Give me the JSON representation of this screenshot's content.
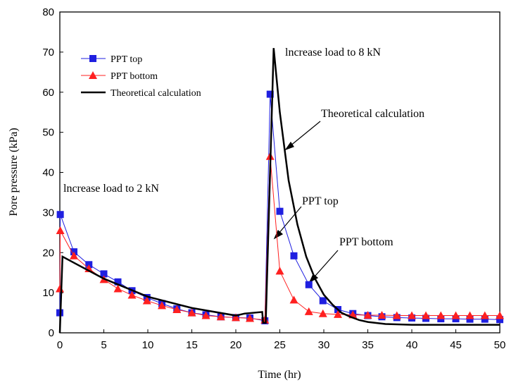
{
  "chart_data": {
    "type": "line",
    "xlabel": "Time (hr)",
    "ylabel": "Pore pressure (kPa)",
    "xlim": [
      0,
      50
    ],
    "ylim": [
      0,
      80
    ],
    "xticks": [
      0,
      5,
      10,
      15,
      20,
      25,
      30,
      35,
      40,
      45,
      50
    ],
    "yticks": [
      0,
      10,
      20,
      30,
      40,
      50,
      60,
      70,
      80
    ],
    "series": [
      {
        "name": "PPT top",
        "color": "#1f1fe0",
        "marker": "square",
        "x": [
          0,
          0.05,
          1.6,
          3.3,
          5,
          6.6,
          8.2,
          9.9,
          11.6,
          13.3,
          15,
          16.6,
          18.3,
          20,
          21.6,
          23.3,
          23.9,
          25,
          26.6,
          28.3,
          29.9,
          31.6,
          33.3,
          35,
          36.6,
          38.3,
          40,
          41.6,
          43.3,
          45,
          46.6,
          48.3,
          50
        ],
        "values": [
          5,
          29.5,
          20.2,
          17,
          14.7,
          12.7,
          10.5,
          8.8,
          7.3,
          6,
          5,
          4.5,
          4,
          3.8,
          3.7,
          3,
          59.5,
          30.3,
          19.2,
          12,
          8,
          5.8,
          4.8,
          4.3,
          4,
          3.8,
          3.7,
          3.6,
          3.5,
          3.5,
          3.4,
          3.4,
          3.3
        ]
      },
      {
        "name": "PPT bottom",
        "color": "#ff2020",
        "marker": "triangle",
        "x": [
          0,
          0.05,
          1.6,
          3.3,
          5,
          6.6,
          8.2,
          9.9,
          11.6,
          13.3,
          15,
          16.6,
          18.3,
          20,
          21.6,
          23.3,
          23.9,
          25,
          26.6,
          28.3,
          29.9,
          31.6,
          33.3,
          35,
          36.6,
          38.3,
          40,
          41.6,
          43.3,
          45,
          46.6,
          48.3,
          50
        ],
        "values": [
          11,
          25.5,
          19.2,
          16,
          13.3,
          11,
          9.4,
          8,
          6.8,
          5.8,
          5,
          4.3,
          4,
          3.8,
          3.6,
          3.2,
          44,
          15.4,
          8.2,
          5.3,
          4.8,
          4.6,
          4.5,
          4.4,
          4.4,
          4.3,
          4.3,
          4.3,
          4.3,
          4.3,
          4.3,
          4.3,
          4.3
        ]
      },
      {
        "name": "Theoretical calculation",
        "color": "#000000",
        "marker": "none",
        "x": [
          0,
          0.3,
          2,
          5,
          10,
          15,
          20,
          21,
          23,
          23.1,
          23.4,
          24.3,
          25,
          26,
          27,
          28,
          29,
          30,
          31,
          32,
          33,
          34,
          35,
          37,
          40,
          50
        ],
        "values": [
          0,
          19,
          17,
          13.5,
          9,
          6.2,
          4.3,
          4.8,
          5.2,
          2.5,
          2.5,
          71,
          55,
          38,
          27,
          19,
          13.5,
          9.5,
          7,
          5,
          4,
          3.2,
          2.7,
          2.2,
          2,
          2
        ]
      }
    ],
    "annotations": [
      "lncrease load to 2 kN",
      "lncrease load to 8 kN",
      "Theoretical calculation",
      "PPT top",
      "PPT bottom"
    ]
  }
}
